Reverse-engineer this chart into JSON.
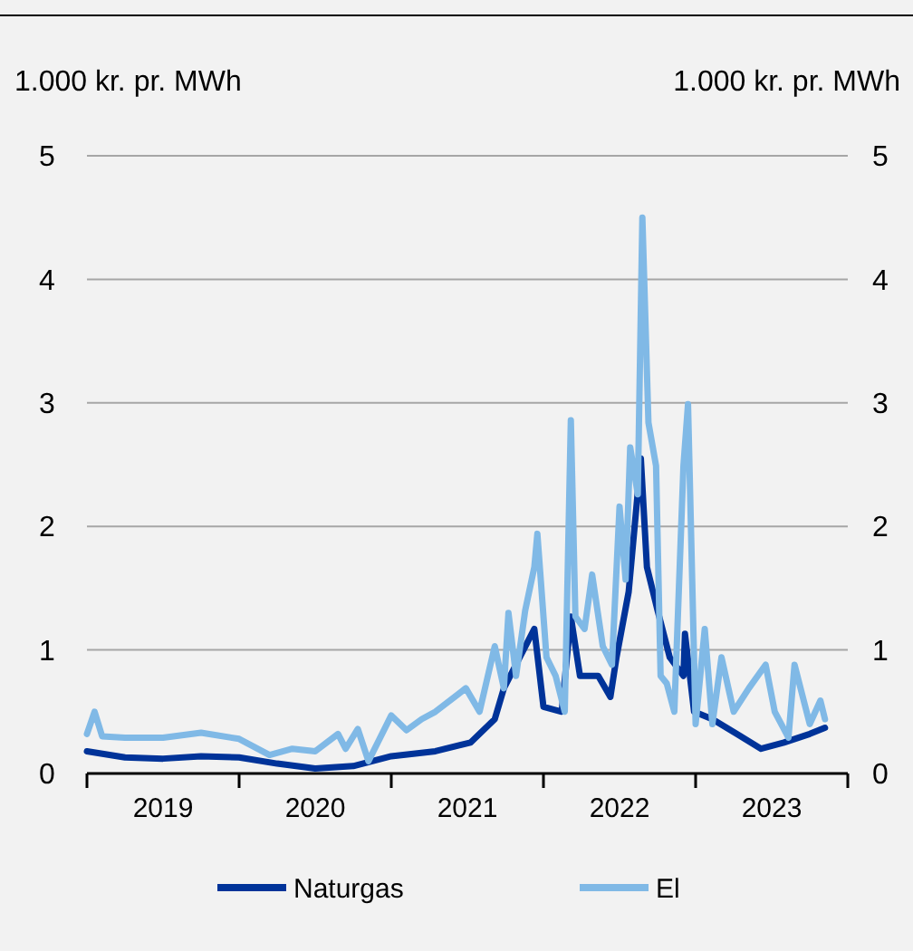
{
  "chart_data": {
    "type": "line",
    "ylabel": "1.000 kr. pr. MWh",
    "y2label": "1.000 kr. pr. MWh",
    "xlim": [
      2019,
      2024
    ],
    "xticks": [
      {
        "value": 2019,
        "label": null
      },
      {
        "value": 2019.5,
        "label": "2019"
      },
      {
        "value": 2020,
        "label": null
      },
      {
        "value": 2020.5,
        "label": "2020"
      },
      {
        "value": 2021,
        "label": null
      },
      {
        "value": 2021.5,
        "label": "2021"
      },
      {
        "value": 2022,
        "label": null
      },
      {
        "value": 2022.5,
        "label": "2022"
      },
      {
        "value": 2023,
        "label": null
      },
      {
        "value": 2023.5,
        "label": "2023"
      },
      {
        "value": 2024,
        "label": null
      }
    ],
    "ylim": [
      0,
      5
    ],
    "yticks": [
      0,
      1,
      2,
      3,
      4,
      5
    ],
    "y2lim": [
      0,
      5
    ],
    "y2ticks": [
      0,
      1,
      2,
      3,
      4,
      5
    ],
    "grid": "y",
    "legend": "bottom",
    "line_style": "solid",
    "marker": "none",
    "series": [
      {
        "name": "Naturgas",
        "color": "#003399",
        "x": [
          2019,
          2019.25,
          2019.5,
          2019.75,
          2020,
          2020.25,
          2020.5,
          2020.75,
          2021,
          2021.29,
          2021.52,
          2021.68,
          2021.74,
          2021.94,
          2022,
          2022.12,
          2022.18,
          2022.24,
          2022.36,
          2022.44,
          2022.48,
          2022.56,
          2022.64,
          2022.68,
          2022.75,
          2022.83,
          2022.92,
          2022.93,
          2022.99,
          2023.11,
          2023.27,
          2023.43,
          2023.58,
          2023.75,
          2023.85
        ],
        "values": [
          0.18,
          0.13,
          0.12,
          0.14,
          0.13,
          0.08,
          0.04,
          0.06,
          0.14,
          0.18,
          0.25,
          0.44,
          0.69,
          1.17,
          0.54,
          0.5,
          1.27,
          0.79,
          0.79,
          0.62,
          0.94,
          1.47,
          2.55,
          1.67,
          1.32,
          0.94,
          0.79,
          1.13,
          0.5,
          0.44,
          0.32,
          0.2,
          0.25,
          0.32,
          0.37
        ]
      },
      {
        "name": "El",
        "color": "#80b9e6",
        "x": [
          2019,
          2019.05,
          2019.1,
          2019.25,
          2019.5,
          2019.75,
          2020,
          2020.2,
          2020.35,
          2020.5,
          2020.65,
          2020.7,
          2020.78,
          2020.85,
          2021,
          2021.1,
          2021.2,
          2021.29,
          2021.49,
          2021.58,
          2021.68,
          2021.74,
          2021.77,
          2021.82,
          2021.88,
          2021.94,
          2021.96,
          2022.02,
          2022.08,
          2022.14,
          2022.18,
          2022.21,
          2022.27,
          2022.32,
          2022.39,
          2022.45,
          2022.5,
          2022.54,
          2022.57,
          2022.62,
          2022.65,
          2022.69,
          2022.74,
          2022.77,
          2022.81,
          2022.86,
          2022.92,
          2022.95,
          2023,
          2023.06,
          2023.11,
          2023.17,
          2023.25,
          2023.35,
          2023.46,
          2023.52,
          2023.61,
          2023.65,
          2023.75,
          2023.82,
          2023.85
        ],
        "values": [
          0.32,
          0.5,
          0.3,
          0.29,
          0.29,
          0.33,
          0.28,
          0.15,
          0.2,
          0.18,
          0.32,
          0.2,
          0.36,
          0.1,
          0.47,
          0.35,
          0.44,
          0.5,
          0.69,
          0.5,
          1.03,
          0.69,
          1.3,
          0.79,
          1.32,
          1.67,
          1.94,
          0.94,
          0.79,
          0.5,
          2.86,
          1.27,
          1.17,
          1.61,
          1.03,
          0.88,
          2.16,
          1.57,
          2.64,
          2.26,
          4.5,
          2.84,
          2.49,
          0.79,
          0.73,
          0.5,
          2.49,
          2.99,
          0.4,
          1.17,
          0.4,
          0.94,
          0.5,
          0.69,
          0.88,
          0.5,
          0.29,
          0.88,
          0.4,
          0.59,
          0.44
        ]
      }
    ]
  }
}
